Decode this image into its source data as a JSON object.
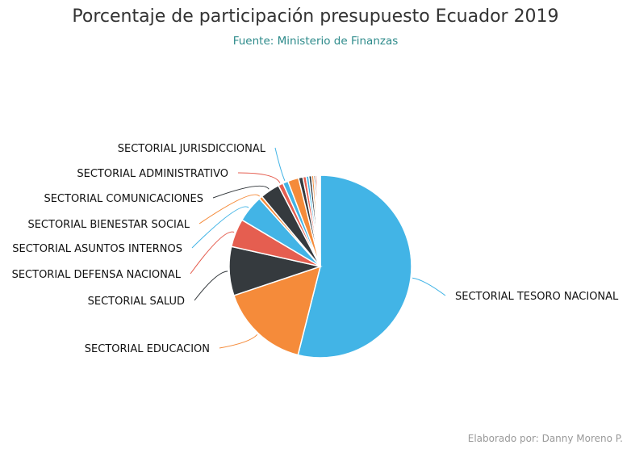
{
  "chart_data": {
    "type": "pie",
    "title": "Porcentaje de participación presupuesto Ecuador 2019",
    "subtitle": "Fuente: Ministerio de Finanzas",
    "credit": "Elaborado por: Danny Moreno P.",
    "slices": [
      {
        "label": "SECTORIAL TESORO NACIONAL",
        "value": 56.0,
        "color": "#42b4e6",
        "labeled": true
      },
      {
        "label": "SECTORIAL EDUCACION",
        "value": 16.5,
        "color": "#f58b3a",
        "labeled": true
      },
      {
        "label": "SECTORIAL SALUD",
        "value": 9.0,
        "color": "#353a3e",
        "labeled": true
      },
      {
        "label": "SECTORIAL DEFENSA NACIONAL",
        "value": 5.2,
        "color": "#e55e50",
        "labeled": true
      },
      {
        "label": "SECTORIAL ASUNTOS INTERNOS",
        "value": 5.0,
        "color": "#42b4e6",
        "labeled": true
      },
      {
        "label": "SECTORIAL BIENESTAR SOCIAL",
        "value": 0.6,
        "color": "#f58b3a",
        "labeled": true
      },
      {
        "label": "SECTORIAL COMUNICACIONES",
        "value": 3.6,
        "color": "#353a3e",
        "labeled": true
      },
      {
        "label": "SECTORIAL ADMINISTRATIVO",
        "value": 0.9,
        "color": "#e55e50",
        "labeled": true
      },
      {
        "label": "SECTORIAL JURISDICCIONAL",
        "value": 1.0,
        "color": "#42b4e6",
        "labeled": true
      },
      {
        "label": "",
        "value": 2.0,
        "color": "#f58b3a",
        "labeled": false
      },
      {
        "label": "",
        "value": 0.8,
        "color": "#353a3e",
        "labeled": false
      },
      {
        "label": "",
        "value": 0.6,
        "color": "#e55e50",
        "labeled": false
      },
      {
        "label": "",
        "value": 0.5,
        "color": "#42b4e6",
        "labeled": false
      },
      {
        "label": "",
        "value": 0.5,
        "color": "#353a3e",
        "labeled": false
      },
      {
        "label": "",
        "value": 0.4,
        "color": "#f58b3a",
        "labeled": false
      },
      {
        "label": "",
        "value": 0.3,
        "color": "#353a3e",
        "labeled": false
      },
      {
        "label": "",
        "value": 0.3,
        "color": "#e55e50",
        "labeled": false
      },
      {
        "label": "",
        "value": 0.2,
        "color": "#42b4e6",
        "labeled": false
      },
      {
        "label": "",
        "value": 0.2,
        "color": "#f58b3a",
        "labeled": false
      },
      {
        "label": "",
        "value": 0.2,
        "color": "#353a3e",
        "labeled": false
      }
    ]
  }
}
